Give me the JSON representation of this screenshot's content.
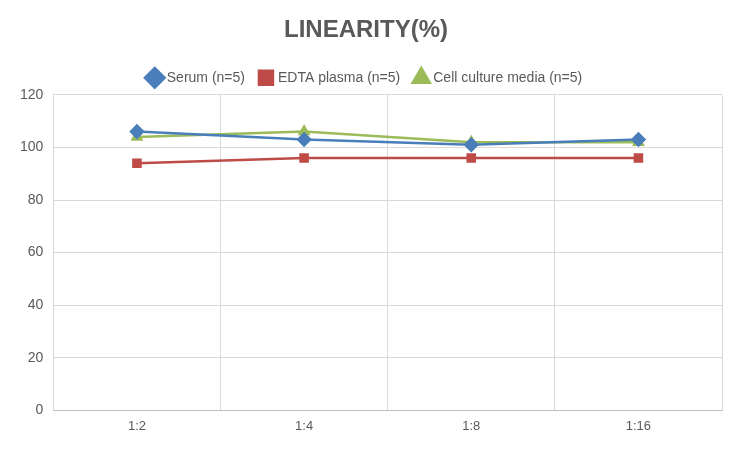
{
  "chart_data": {
    "type": "line",
    "title": "LINEARITY(%)",
    "categories": [
      "1:2",
      "1:4",
      "1:8",
      "1:16"
    ],
    "series": [
      {
        "name": "Serum (n=5)",
        "color": "#4a7ebb",
        "marker": "diamond",
        "values": [
          106,
          103,
          101,
          103
        ]
      },
      {
        "name": "EDTA plasma (n=5)",
        "color": "#be4b48",
        "marker": "square",
        "values": [
          94,
          96,
          96,
          96
        ]
      },
      {
        "name": "Cell culture media (n=5)",
        "color": "#9bbb59",
        "marker": "triangle",
        "values": [
          104,
          106,
          102,
          102
        ]
      }
    ],
    "ylim": [
      0,
      120
    ],
    "yticks": [
      0,
      20,
      40,
      60,
      80,
      100,
      120
    ],
    "grid": true,
    "legend": "top"
  }
}
